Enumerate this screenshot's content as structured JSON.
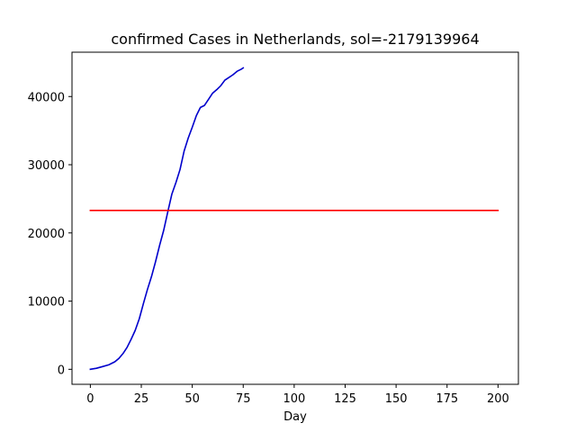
{
  "chart_data": {
    "type": "line",
    "title": "confirmed Cases in Netherlands, sol=-2179139964",
    "xlabel": "Day",
    "ylabel": "",
    "xlim": [
      -9,
      210
    ],
    "ylim": [
      -2200,
      46500
    ],
    "xticks": [
      0,
      25,
      50,
      75,
      100,
      125,
      150,
      175,
      200
    ],
    "yticks": [
      0,
      10000,
      20000,
      30000,
      40000
    ],
    "grid": false,
    "series": [
      {
        "color": "#0000cc",
        "x": [
          0,
          3,
          6,
          9,
          10,
          12,
          14,
          16,
          18,
          20,
          22,
          24,
          26,
          28,
          30,
          32,
          34,
          36,
          38,
          40,
          42,
          44,
          46,
          48,
          50,
          52,
          54,
          56,
          58,
          60,
          62,
          64,
          66,
          68,
          70,
          72,
          74,
          75
        ],
        "y": [
          0,
          150,
          400,
          650,
          800,
          1100,
          1600,
          2300,
          3200,
          4400,
          5700,
          7400,
          9600,
          11700,
          13600,
          15800,
          18200,
          20400,
          23100,
          25700,
          27400,
          29300,
          32000,
          33900,
          35500,
          37200,
          38400,
          38700,
          39600,
          40500,
          41000,
          41600,
          42400,
          42800,
          43200,
          43700,
          44000,
          44200
        ]
      },
      {
        "color": "#ff0000",
        "x": [
          0,
          200
        ],
        "y": [
          23300,
          23300
        ]
      }
    ]
  }
}
